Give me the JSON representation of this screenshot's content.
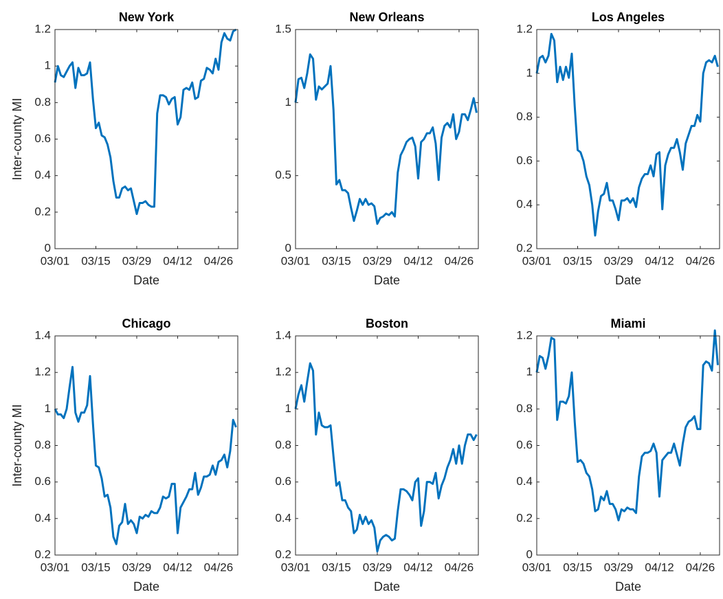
{
  "chart_data": [
    {
      "type": "line",
      "title": "New York",
      "xlabel": "Date",
      "ylabel": "Inter-county MI",
      "color": "#0072bd",
      "x": [
        0,
        1,
        2,
        3,
        4,
        5,
        6,
        7,
        8,
        9,
        10,
        11,
        12,
        13,
        14,
        15,
        16,
        17,
        18,
        19,
        20,
        21,
        22,
        23,
        24,
        25,
        26,
        27,
        28,
        29,
        30,
        31,
        32,
        33,
        34,
        35,
        36,
        37,
        38,
        39,
        40,
        41,
        42,
        43,
        44,
        45,
        46,
        47,
        48,
        49,
        50,
        51,
        52,
        53,
        54,
        55,
        56,
        57,
        58,
        59,
        60,
        61,
        62
      ],
      "values": [
        0.91,
        1.0,
        0.95,
        0.94,
        0.97,
        1.0,
        1.02,
        0.88,
        0.99,
        0.95,
        0.95,
        0.96,
        1.02,
        0.82,
        0.66,
        0.69,
        0.62,
        0.61,
        0.57,
        0.5,
        0.37,
        0.28,
        0.28,
        0.33,
        0.34,
        0.32,
        0.33,
        0.26,
        0.19,
        0.25,
        0.25,
        0.26,
        0.24,
        0.23,
        0.23,
        0.74,
        0.84,
        0.84,
        0.83,
        0.79,
        0.82,
        0.83,
        0.68,
        0.72,
        0.87,
        0.88,
        0.87,
        0.91,
        0.82,
        0.83,
        0.92,
        0.93,
        0.99,
        0.98,
        0.96,
        1.04,
        0.98,
        1.13,
        1.18,
        1.15,
        1.14,
        1.19,
        1.2
      ],
      "xlim": [
        0,
        62.6
      ],
      "xticks": [
        {
          "value": 0,
          "label": "03/01"
        },
        {
          "value": 14,
          "label": "03/15"
        },
        {
          "value": 28,
          "label": "03/29"
        },
        {
          "value": 42,
          "label": "04/12"
        },
        {
          "value": 56,
          "label": "04/26"
        }
      ],
      "ylim": [
        0,
        1.2
      ],
      "yticks": [
        0,
        0.2,
        0.4,
        0.6,
        0.8,
        1,
        1.2
      ]
    },
    {
      "type": "line",
      "title": "New Orleans",
      "xlabel": "Date",
      "color": "#0072bd",
      "x": [
        0,
        1,
        2,
        3,
        4,
        5,
        6,
        7,
        8,
        9,
        10,
        11,
        12,
        13,
        14,
        15,
        16,
        17,
        18,
        19,
        20,
        21,
        22,
        23,
        24,
        25,
        26,
        27,
        28,
        29,
        30,
        31,
        32,
        33,
        34,
        35,
        36,
        37,
        38,
        39,
        40,
        41,
        42,
        43,
        44,
        45,
        46,
        47,
        48,
        49,
        50,
        51,
        52,
        53,
        54,
        55,
        56,
        57,
        58,
        59,
        60,
        61,
        62
      ],
      "values": [
        1.0,
        1.16,
        1.17,
        1.1,
        1.2,
        1.33,
        1.3,
        1.02,
        1.11,
        1.09,
        1.11,
        1.13,
        1.25,
        0.95,
        0.44,
        0.47,
        0.4,
        0.4,
        0.38,
        0.28,
        0.19,
        0.26,
        0.34,
        0.3,
        0.34,
        0.3,
        0.31,
        0.29,
        0.17,
        0.21,
        0.22,
        0.24,
        0.23,
        0.25,
        0.22,
        0.52,
        0.64,
        0.68,
        0.73,
        0.75,
        0.76,
        0.7,
        0.48,
        0.73,
        0.75,
        0.79,
        0.79,
        0.83,
        0.72,
        0.47,
        0.76,
        0.84,
        0.86,
        0.83,
        0.92,
        0.75,
        0.8,
        0.92,
        0.92,
        0.88,
        0.95,
        1.03,
        0.93
      ],
      "xlim": [
        0,
        62.6
      ],
      "xticks": [
        {
          "value": 0,
          "label": "03/01"
        },
        {
          "value": 14,
          "label": "03/15"
        },
        {
          "value": 28,
          "label": "03/29"
        },
        {
          "value": 42,
          "label": "04/12"
        },
        {
          "value": 56,
          "label": "04/26"
        }
      ],
      "ylim": [
        0,
        1.5
      ],
      "yticks": [
        0,
        0.5,
        1,
        1.5
      ]
    },
    {
      "type": "line",
      "title": "Los Angeles",
      "xlabel": "Date",
      "color": "#0072bd",
      "x": [
        0,
        1,
        2,
        3,
        4,
        5,
        6,
        7,
        8,
        9,
        10,
        11,
        12,
        13,
        14,
        15,
        16,
        17,
        18,
        19,
        20,
        21,
        22,
        23,
        24,
        25,
        26,
        27,
        28,
        29,
        30,
        31,
        32,
        33,
        34,
        35,
        36,
        37,
        38,
        39,
        40,
        41,
        42,
        43,
        44,
        45,
        46,
        47,
        48,
        49,
        50,
        51,
        52,
        53,
        54,
        55,
        56,
        57,
        58,
        59,
        60,
        61,
        62
      ],
      "values": [
        1.0,
        1.07,
        1.08,
        1.05,
        1.08,
        1.18,
        1.15,
        0.96,
        1.03,
        0.97,
        1.03,
        0.98,
        1.09,
        0.85,
        0.65,
        0.64,
        0.6,
        0.53,
        0.49,
        0.4,
        0.26,
        0.37,
        0.44,
        0.45,
        0.5,
        0.42,
        0.42,
        0.38,
        0.33,
        0.42,
        0.42,
        0.43,
        0.41,
        0.43,
        0.39,
        0.48,
        0.52,
        0.54,
        0.54,
        0.58,
        0.53,
        0.63,
        0.64,
        0.38,
        0.58,
        0.63,
        0.66,
        0.66,
        0.7,
        0.64,
        0.56,
        0.68,
        0.72,
        0.76,
        0.76,
        0.81,
        0.78,
        1.0,
        1.05,
        1.06,
        1.05,
        1.08,
        1.03
      ],
      "xlim": [
        0,
        62.6
      ],
      "xticks": [
        {
          "value": 0,
          "label": "03/01"
        },
        {
          "value": 14,
          "label": "03/15"
        },
        {
          "value": 28,
          "label": "03/29"
        },
        {
          "value": 42,
          "label": "04/12"
        },
        {
          "value": 56,
          "label": "04/26"
        }
      ],
      "ylim": [
        0.2,
        1.2
      ],
      "yticks": [
        0.2,
        0.4,
        0.6,
        0.8,
        1,
        1.2
      ]
    },
    {
      "type": "line",
      "title": "Chicago",
      "xlabel": "Date",
      "ylabel": "Inter-county MI",
      "color": "#0072bd",
      "x": [
        0,
        1,
        2,
        3,
        4,
        5,
        6,
        7,
        8,
        9,
        10,
        11,
        12,
        13,
        14,
        15,
        16,
        17,
        18,
        19,
        20,
        21,
        22,
        23,
        24,
        25,
        26,
        27,
        28,
        29,
        30,
        31,
        32,
        33,
        34,
        35,
        36,
        37,
        38,
        39,
        40,
        41,
        42,
        43,
        44,
        45,
        46,
        47,
        48,
        49,
        50,
        51,
        52,
        53,
        54,
        55,
        56,
        57,
        58,
        59,
        60,
        61,
        62
      ],
      "values": [
        1.0,
        0.97,
        0.97,
        0.95,
        1.0,
        1.12,
        1.23,
        0.98,
        0.93,
        0.98,
        0.98,
        1.02,
        1.18,
        0.92,
        0.69,
        0.68,
        0.62,
        0.52,
        0.53,
        0.46,
        0.3,
        0.26,
        0.36,
        0.38,
        0.48,
        0.37,
        0.39,
        0.37,
        0.32,
        0.41,
        0.4,
        0.42,
        0.41,
        0.44,
        0.43,
        0.43,
        0.46,
        0.52,
        0.51,
        0.52,
        0.59,
        0.59,
        0.32,
        0.46,
        0.49,
        0.52,
        0.56,
        0.56,
        0.65,
        0.53,
        0.57,
        0.63,
        0.63,
        0.64,
        0.69,
        0.64,
        0.71,
        0.72,
        0.75,
        0.68,
        0.77,
        0.94,
        0.9
      ],
      "xlim": [
        0,
        62.6
      ],
      "xticks": [
        {
          "value": 0,
          "label": "03/01"
        },
        {
          "value": 14,
          "label": "03/15"
        },
        {
          "value": 28,
          "label": "03/29"
        },
        {
          "value": 42,
          "label": "04/12"
        },
        {
          "value": 56,
          "label": "04/26"
        }
      ],
      "ylim": [
        0.2,
        1.4
      ],
      "yticks": [
        0.2,
        0.4,
        0.6,
        0.8,
        1,
        1.2,
        1.4
      ]
    },
    {
      "type": "line",
      "title": "Boston",
      "xlabel": "Date",
      "color": "#0072bd",
      "x": [
        0,
        1,
        2,
        3,
        4,
        5,
        6,
        7,
        8,
        9,
        10,
        11,
        12,
        13,
        14,
        15,
        16,
        17,
        18,
        19,
        20,
        21,
        22,
        23,
        24,
        25,
        26,
        27,
        28,
        29,
        30,
        31,
        32,
        33,
        34,
        35,
        36,
        37,
        38,
        39,
        40,
        41,
        42,
        43,
        44,
        45,
        46,
        47,
        48,
        49,
        50,
        51,
        52,
        53,
        54,
        55,
        56,
        57,
        58,
        59,
        60,
        61,
        62
      ],
      "values": [
        1.0,
        1.08,
        1.13,
        1.04,
        1.15,
        1.25,
        1.21,
        0.86,
        0.98,
        0.91,
        0.9,
        0.9,
        0.91,
        0.74,
        0.58,
        0.6,
        0.5,
        0.5,
        0.46,
        0.44,
        0.32,
        0.34,
        0.42,
        0.37,
        0.41,
        0.37,
        0.39,
        0.35,
        0.22,
        0.28,
        0.3,
        0.31,
        0.3,
        0.28,
        0.29,
        0.44,
        0.56,
        0.56,
        0.55,
        0.53,
        0.5,
        0.6,
        0.62,
        0.36,
        0.44,
        0.6,
        0.6,
        0.59,
        0.65,
        0.51,
        0.58,
        0.62,
        0.68,
        0.72,
        0.78,
        0.7,
        0.8,
        0.7,
        0.8,
        0.86,
        0.86,
        0.83,
        0.86
      ],
      "xlim": [
        0,
        62.6
      ],
      "xticks": [
        {
          "value": 0,
          "label": "03/01"
        },
        {
          "value": 14,
          "label": "03/15"
        },
        {
          "value": 28,
          "label": "03/29"
        },
        {
          "value": 42,
          "label": "04/12"
        },
        {
          "value": 56,
          "label": "04/26"
        }
      ],
      "ylim": [
        0.2,
        1.4
      ],
      "yticks": [
        0.2,
        0.4,
        0.6,
        0.8,
        1,
        1.2,
        1.4
      ]
    },
    {
      "type": "line",
      "title": "Miami",
      "xlabel": "Date",
      "color": "#0072bd",
      "x": [
        0,
        1,
        2,
        3,
        4,
        5,
        6,
        7,
        8,
        9,
        10,
        11,
        12,
        13,
        14,
        15,
        16,
        17,
        18,
        19,
        20,
        21,
        22,
        23,
        24,
        25,
        26,
        27,
        28,
        29,
        30,
        31,
        32,
        33,
        34,
        35,
        36,
        37,
        38,
        39,
        40,
        41,
        42,
        43,
        44,
        45,
        46,
        47,
        48,
        49,
        50,
        51,
        52,
        53,
        54,
        55,
        56,
        57,
        58,
        59,
        60,
        61,
        62
      ],
      "values": [
        1.0,
        1.09,
        1.08,
        1.02,
        1.09,
        1.19,
        1.18,
        0.74,
        0.84,
        0.84,
        0.83,
        0.87,
        1.0,
        0.73,
        0.51,
        0.52,
        0.5,
        0.45,
        0.43,
        0.36,
        0.24,
        0.25,
        0.32,
        0.3,
        0.35,
        0.28,
        0.28,
        0.25,
        0.19,
        0.25,
        0.24,
        0.26,
        0.25,
        0.25,
        0.23,
        0.43,
        0.54,
        0.56,
        0.56,
        0.57,
        0.61,
        0.56,
        0.32,
        0.52,
        0.54,
        0.56,
        0.56,
        0.61,
        0.55,
        0.49,
        0.61,
        0.7,
        0.73,
        0.74,
        0.76,
        0.69,
        0.69,
        1.04,
        1.06,
        1.05,
        1.01,
        1.23,
        1.04
      ],
      "xlim": [
        0,
        62.6
      ],
      "xticks": [
        {
          "value": 0,
          "label": "03/01"
        },
        {
          "value": 14,
          "label": "03/15"
        },
        {
          "value": 28,
          "label": "03/29"
        },
        {
          "value": 42,
          "label": "04/12"
        },
        {
          "value": 56,
          "label": "04/26"
        }
      ],
      "ylim": [
        0,
        1.2
      ],
      "yticks": [
        0,
        0.2,
        0.4,
        0.6,
        0.8,
        1,
        1.2
      ]
    }
  ]
}
